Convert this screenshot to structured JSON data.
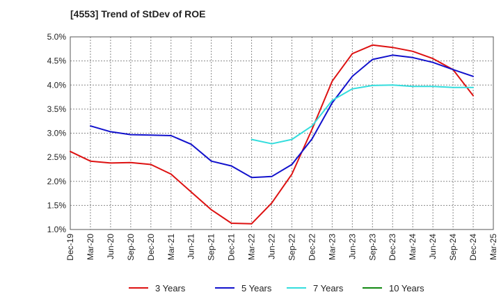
{
  "chart_data": {
    "type": "line",
    "title": "[4553]  Trend of StDev of ROE",
    "xlabel": "",
    "ylabel": "",
    "ylim": [
      1.0,
      5.0
    ],
    "y_ticks": [
      "1.0%",
      "1.5%",
      "2.0%",
      "2.5%",
      "3.0%",
      "3.5%",
      "4.0%",
      "4.5%",
      "5.0%"
    ],
    "categories": [
      "Dec-19",
      "Mar-20",
      "Jun-20",
      "Sep-20",
      "Dec-20",
      "Mar-21",
      "Jun-21",
      "Sep-21",
      "Dec-21",
      "Mar-22",
      "Jun-22",
      "Sep-22",
      "Dec-22",
      "Mar-23",
      "Jun-23",
      "Sep-23",
      "Dec-23",
      "Mar-24",
      "Jun-24",
      "Sep-24",
      "Dec-24",
      "Mar-25"
    ],
    "grid": true,
    "legend_position": "bottom",
    "series": [
      {
        "name": "3 Years",
        "color": "#dd1111",
        "values": [
          2.62,
          2.42,
          2.38,
          2.39,
          2.35,
          2.15,
          1.78,
          1.41,
          1.13,
          1.12,
          1.55,
          2.15,
          3.08,
          4.08,
          4.65,
          4.83,
          4.78,
          4.7,
          4.55,
          4.32,
          3.78,
          null
        ]
      },
      {
        "name": "5 Years",
        "color": "#1111cc",
        "values": [
          null,
          3.15,
          3.03,
          2.97,
          2.96,
          2.95,
          2.77,
          2.42,
          2.32,
          2.08,
          2.1,
          2.35,
          2.88,
          3.63,
          4.18,
          4.53,
          4.62,
          4.57,
          4.47,
          4.32,
          4.18,
          null
        ]
      },
      {
        "name": "7 Years",
        "color": "#33dddd",
        "values": [
          null,
          null,
          null,
          null,
          null,
          null,
          null,
          null,
          null,
          2.87,
          2.78,
          2.87,
          3.15,
          3.68,
          3.92,
          3.99,
          4.0,
          3.97,
          3.97,
          3.95,
          3.95,
          null
        ]
      },
      {
        "name": "10 Years",
        "color": "#118811",
        "values": [
          null,
          null,
          null,
          null,
          null,
          null,
          null,
          null,
          null,
          null,
          null,
          null,
          null,
          null,
          null,
          null,
          null,
          null,
          null,
          null,
          null,
          null
        ]
      }
    ]
  }
}
